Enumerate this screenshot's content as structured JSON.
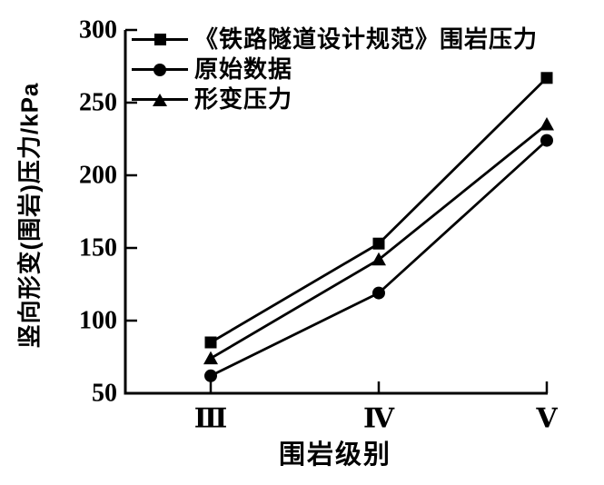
{
  "chart_data": {
    "type": "line",
    "title": "",
    "xlabel": "围岩级别",
    "ylabel": "竖向形变(围岩)压力/kPa",
    "categories": [
      "Ⅲ",
      "Ⅳ",
      "Ⅴ"
    ],
    "series": [
      {
        "name": "《铁路隧道设计规范》围岩压力",
        "marker": "square",
        "values": [
          85,
          153,
          267
        ]
      },
      {
        "name": "原始数据",
        "marker": "circle",
        "values": [
          62,
          119,
          224
        ]
      },
      {
        "name": "形变压力",
        "marker": "triangle",
        "values": [
          74,
          142,
          235
        ]
      }
    ],
    "ylim": [
      50,
      300
    ],
    "yticks": [
      50,
      100,
      150,
      200,
      250,
      300
    ],
    "legend_position": "top-left",
    "grid": false,
    "colors": {
      "foreground": "#000000",
      "background": "#ffffff"
    }
  }
}
